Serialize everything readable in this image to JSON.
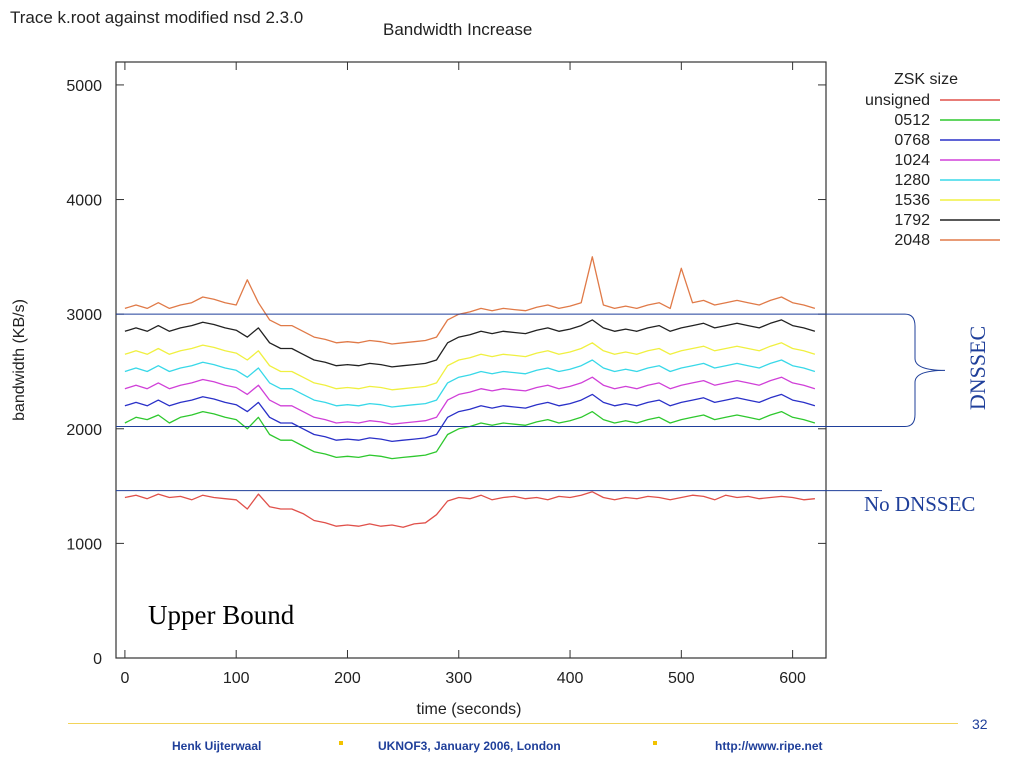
{
  "slide": {
    "title": "Trace k.root against modified nsd 2.3.0",
    "page_number": "32",
    "footer": {
      "author": "Henk Uijterwaal",
      "event": "UKNOF3, January 2006, London",
      "url": "http://www.ripe.net"
    }
  },
  "annotations": {
    "dnssec": "DNSSEC",
    "no_dnssec": "No DNSSEC",
    "upper_bound": "Upper Bound",
    "dnssec_band": [
      2020,
      3000
    ],
    "no_dnssec_level": 1460,
    "color": "#1f3f9a"
  },
  "chart_data": {
    "type": "line",
    "title": "Bandwidth Increase",
    "xlabel": "time (seconds)",
    "ylabel": "bandwidth (KB/s)",
    "xlim": [
      -8,
      630
    ],
    "ylim": [
      0,
      5200
    ],
    "xticks": [
      0,
      100,
      200,
      300,
      400,
      500,
      600
    ],
    "yticks": [
      0,
      1000,
      2000,
      3000,
      4000,
      5000
    ],
    "legend_title": "ZSK size",
    "legend_position": "top-right (outside plot)",
    "grid": false,
    "x": [
      0,
      10,
      20,
      30,
      40,
      50,
      60,
      70,
      80,
      90,
      100,
      110,
      120,
      130,
      140,
      150,
      160,
      170,
      180,
      190,
      200,
      210,
      220,
      230,
      240,
      250,
      260,
      270,
      280,
      290,
      300,
      310,
      320,
      330,
      340,
      350,
      360,
      370,
      380,
      390,
      400,
      410,
      420,
      430,
      440,
      450,
      460,
      470,
      480,
      490,
      500,
      510,
      520,
      530,
      540,
      550,
      560,
      570,
      580,
      590,
      600,
      610,
      620
    ],
    "series": [
      {
        "name": "unsigned",
        "color": "#e0504a",
        "values": [
          1400,
          1420,
          1390,
          1430,
          1400,
          1410,
          1380,
          1420,
          1400,
          1390,
          1380,
          1300,
          1430,
          1320,
          1300,
          1300,
          1260,
          1200,
          1180,
          1150,
          1160,
          1150,
          1170,
          1150,
          1160,
          1140,
          1170,
          1180,
          1250,
          1370,
          1400,
          1390,
          1420,
          1380,
          1400,
          1410,
          1390,
          1400,
          1380,
          1410,
          1400,
          1420,
          1450,
          1400,
          1380,
          1400,
          1390,
          1410,
          1400,
          1380,
          1400,
          1420,
          1410,
          1380,
          1420,
          1400,
          1410,
          1390,
          1400,
          1410,
          1400,
          1380,
          1390
        ]
      },
      {
        "name": "0512",
        "color": "#2ec82e",
        "values": [
          2050,
          2100,
          2080,
          2120,
          2050,
          2100,
          2120,
          2150,
          2130,
          2100,
          2080,
          2000,
          2100,
          1950,
          1900,
          1900,
          1850,
          1800,
          1780,
          1750,
          1760,
          1750,
          1770,
          1760,
          1740,
          1750,
          1760,
          1770,
          1800,
          1950,
          2000,
          2020,
          2050,
          2030,
          2050,
          2040,
          2030,
          2060,
          2080,
          2050,
          2070,
          2100,
          2150,
          2080,
          2050,
          2070,
          2050,
          2080,
          2100,
          2050,
          2080,
          2100,
          2120,
          2080,
          2100,
          2120,
          2100,
          2080,
          2120,
          2150,
          2100,
          2080,
          2050
        ]
      },
      {
        "name": "0768",
        "color": "#2a30c8",
        "values": [
          2200,
          2230,
          2200,
          2250,
          2200,
          2230,
          2250,
          2280,
          2260,
          2230,
          2210,
          2150,
          2230,
          2100,
          2050,
          2050,
          2000,
          1950,
          1930,
          1900,
          1910,
          1900,
          1920,
          1910,
          1890,
          1900,
          1910,
          1920,
          1950,
          2100,
          2150,
          2170,
          2200,
          2180,
          2200,
          2190,
          2180,
          2210,
          2230,
          2200,
          2220,
          2250,
          2300,
          2230,
          2200,
          2220,
          2200,
          2230,
          2250,
          2200,
          2230,
          2250,
          2270,
          2230,
          2250,
          2270,
          2250,
          2230,
          2270,
          2300,
          2250,
          2230,
          2200
        ]
      },
      {
        "name": "1024",
        "color": "#d040d8",
        "values": [
          2350,
          2380,
          2350,
          2400,
          2350,
          2380,
          2400,
          2430,
          2410,
          2380,
          2360,
          2300,
          2380,
          2250,
          2200,
          2200,
          2150,
          2100,
          2080,
          2050,
          2060,
          2050,
          2070,
          2060,
          2040,
          2050,
          2060,
          2070,
          2100,
          2250,
          2300,
          2320,
          2350,
          2330,
          2350,
          2340,
          2330,
          2360,
          2380,
          2350,
          2370,
          2400,
          2450,
          2380,
          2350,
          2370,
          2350,
          2380,
          2400,
          2350,
          2380,
          2400,
          2420,
          2380,
          2400,
          2420,
          2400,
          2380,
          2420,
          2450,
          2400,
          2380,
          2350
        ]
      },
      {
        "name": "1280",
        "color": "#38d8e8",
        "values": [
          2500,
          2530,
          2500,
          2550,
          2500,
          2530,
          2550,
          2580,
          2560,
          2530,
          2510,
          2450,
          2530,
          2400,
          2350,
          2350,
          2300,
          2250,
          2230,
          2200,
          2210,
          2200,
          2220,
          2210,
          2190,
          2200,
          2210,
          2220,
          2250,
          2400,
          2450,
          2470,
          2500,
          2480,
          2500,
          2490,
          2480,
          2510,
          2530,
          2500,
          2520,
          2550,
          2600,
          2530,
          2500,
          2520,
          2500,
          2530,
          2550,
          2500,
          2530,
          2550,
          2570,
          2530,
          2550,
          2570,
          2550,
          2530,
          2570,
          2600,
          2550,
          2530,
          2500
        ]
      },
      {
        "name": "1536",
        "color": "#f0f040",
        "values": [
          2650,
          2680,
          2650,
          2700,
          2650,
          2680,
          2700,
          2730,
          2710,
          2680,
          2660,
          2600,
          2680,
          2550,
          2500,
          2500,
          2450,
          2400,
          2380,
          2350,
          2360,
          2350,
          2370,
          2360,
          2340,
          2350,
          2360,
          2370,
          2400,
          2550,
          2600,
          2620,
          2650,
          2630,
          2650,
          2640,
          2630,
          2660,
          2680,
          2650,
          2670,
          2700,
          2750,
          2680,
          2650,
          2670,
          2650,
          2680,
          2700,
          2650,
          2680,
          2700,
          2720,
          2680,
          2700,
          2720,
          2700,
          2680,
          2720,
          2750,
          2700,
          2680,
          2650
        ]
      },
      {
        "name": "1792",
        "color": "#222222",
        "values": [
          2850,
          2880,
          2850,
          2900,
          2850,
          2880,
          2900,
          2930,
          2910,
          2880,
          2860,
          2800,
          2880,
          2750,
          2700,
          2700,
          2650,
          2600,
          2580,
          2550,
          2560,
          2550,
          2570,
          2560,
          2540,
          2550,
          2560,
          2570,
          2600,
          2750,
          2800,
          2820,
          2850,
          2830,
          2850,
          2840,
          2830,
          2860,
          2880,
          2850,
          2870,
          2900,
          2950,
          2880,
          2850,
          2870,
          2850,
          2880,
          2900,
          2850,
          2880,
          2900,
          2920,
          2880,
          2900,
          2920,
          2900,
          2880,
          2920,
          2950,
          2900,
          2880,
          2850
        ]
      },
      {
        "name": "2048",
        "color": "#e07a48",
        "values": [
          3050,
          3080,
          3050,
          3100,
          3050,
          3080,
          3100,
          3150,
          3130,
          3100,
          3080,
          3300,
          3100,
          2950,
          2900,
          2900,
          2850,
          2800,
          2780,
          2750,
          2760,
          2750,
          2770,
          2760,
          2740,
          2750,
          2760,
          2770,
          2800,
          2950,
          3000,
          3020,
          3050,
          3030,
          3050,
          3040,
          3030,
          3060,
          3080,
          3050,
          3070,
          3100,
          3500,
          3080,
          3050,
          3070,
          3050,
          3080,
          3100,
          3050,
          3400,
          3100,
          3120,
          3080,
          3100,
          3120,
          3100,
          3080,
          3120,
          3150,
          3100,
          3080,
          3050
        ]
      }
    ]
  }
}
